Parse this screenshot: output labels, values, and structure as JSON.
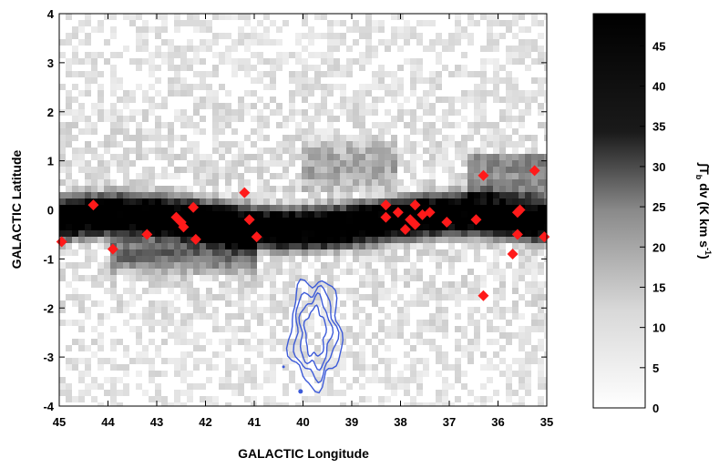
{
  "chart_data": {
    "type": "heatmap",
    "xlabel": "GALACTIC Longitude",
    "ylabel": "GALACTIC Latitude",
    "xlim": [
      45,
      35
    ],
    "ylim": [
      -4,
      4
    ],
    "x_ticks": [
      "45",
      "44",
      "43",
      "42",
      "41",
      "40",
      "39",
      "38",
      "37",
      "36",
      "35"
    ],
    "y_ticks": [
      "4",
      "3",
      "2",
      "1",
      "0",
      "-1",
      "-2",
      "-3",
      "-4"
    ],
    "colorbar": {
      "label": "∫T",
      "label_sub": "b",
      "label_rest": " dv (K km s",
      "label_sup": "-1",
      "label_end": ")",
      "range": [
        0,
        49
      ],
      "ticks": [
        "45",
        "40",
        "35",
        "30",
        "25",
        "20",
        "15",
        "10",
        "5",
        "0"
      ],
      "colormap": "white-to-black"
    },
    "marker_color": "#ff1a1a",
    "contour_color": "#3d5bd9",
    "markers": [
      [
        44.95,
        -0.65
      ],
      [
        44.3,
        0.1
      ],
      [
        43.9,
        -0.8
      ],
      [
        43.2,
        -0.5
      ],
      [
        42.6,
        -0.15
      ],
      [
        42.5,
        -0.25
      ],
      [
        42.45,
        -0.35
      ],
      [
        42.25,
        0.05
      ],
      [
        42.2,
        -0.6
      ],
      [
        41.2,
        0.35
      ],
      [
        41.1,
        -0.2
      ],
      [
        40.95,
        -0.55
      ],
      [
        38.3,
        0.1
      ],
      [
        38.3,
        -0.15
      ],
      [
        38.05,
        -0.05
      ],
      [
        37.9,
        -0.4
      ],
      [
        37.8,
        -0.2
      ],
      [
        37.7,
        0.1
      ],
      [
        37.7,
        -0.3
      ],
      [
        37.55,
        -0.1
      ],
      [
        37.4,
        -0.05
      ],
      [
        37.05,
        -0.25
      ],
      [
        36.45,
        -0.2
      ],
      [
        36.3,
        0.7
      ],
      [
        36.3,
        -1.75
      ],
      [
        35.7,
        -0.9
      ],
      [
        35.6,
        -0.05
      ],
      [
        35.6,
        -0.5
      ],
      [
        35.55,
        0.0
      ],
      [
        35.25,
        0.8
      ],
      [
        35.05,
        -0.55
      ]
    ]
  }
}
